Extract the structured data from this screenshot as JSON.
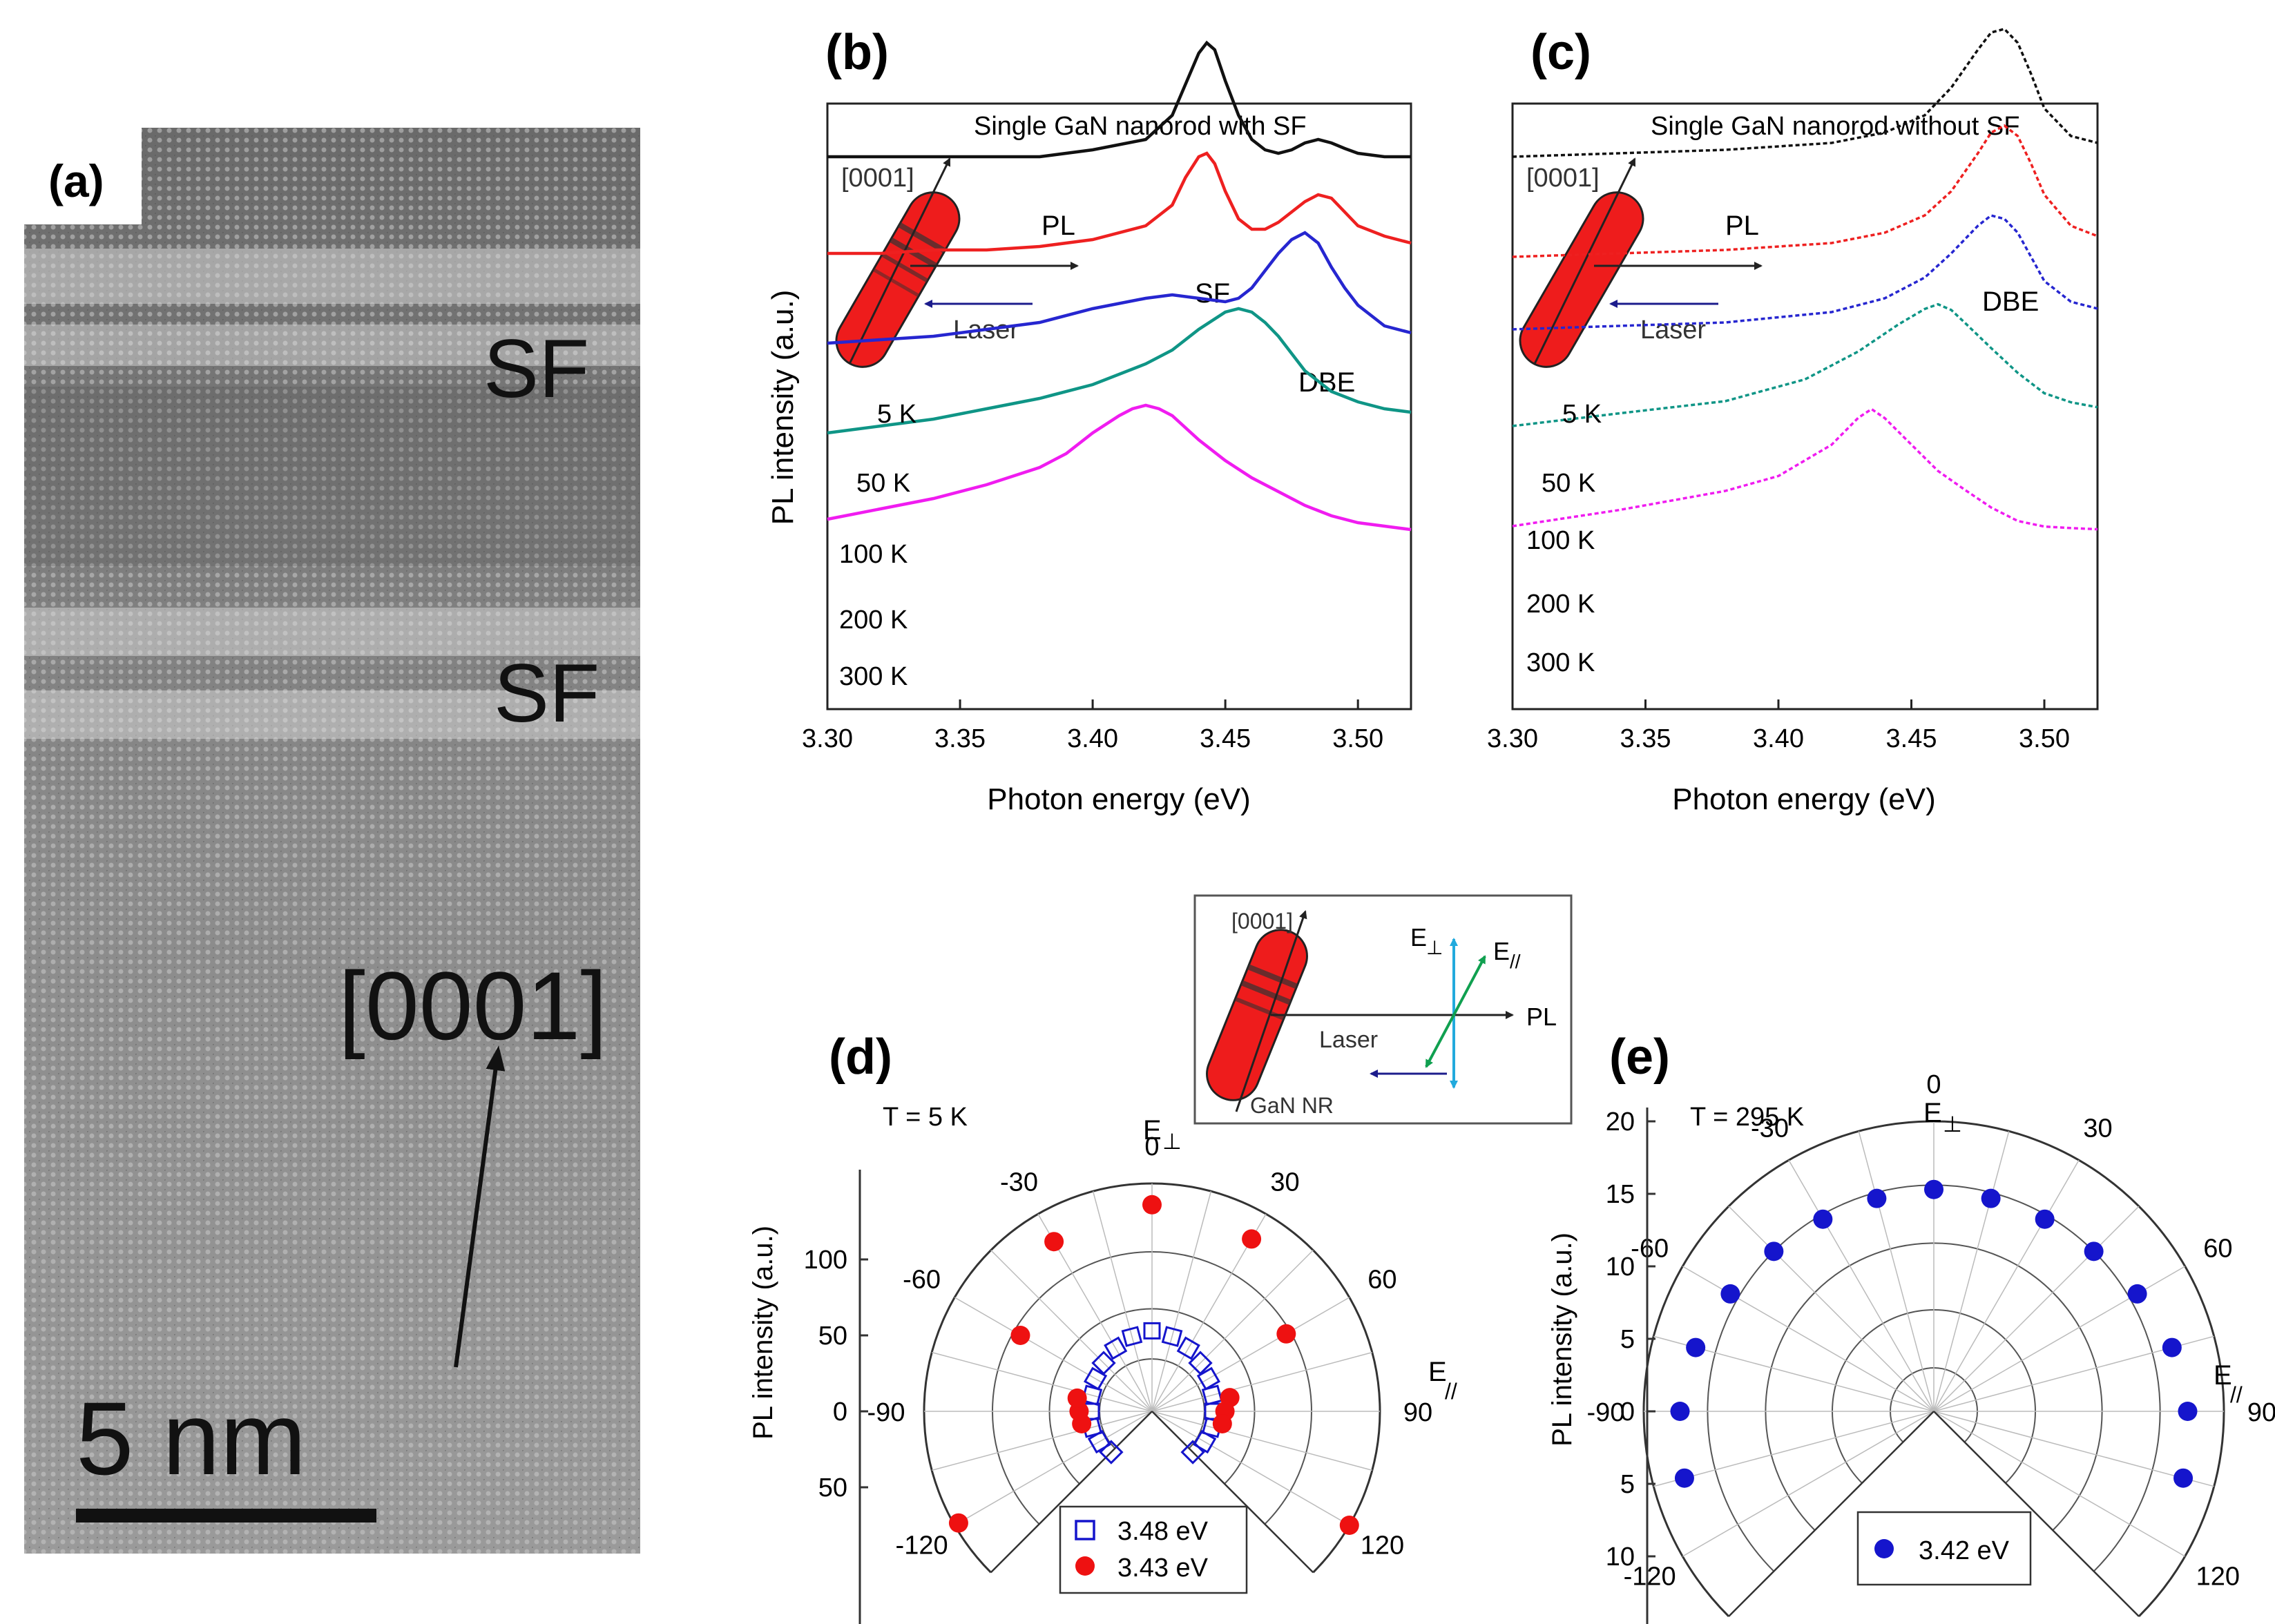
{
  "panels": {
    "a": {
      "label": "(a)",
      "sf_labels": [
        "SF",
        "SF"
      ],
      "direction": "[0001]",
      "scalebar": "5 nm"
    },
    "b": {
      "label": "(b)",
      "title": "Single GaN nanorod with SF",
      "inset": {
        "axis": "[0001]",
        "pl": "PL",
        "laser": "Laser"
      },
      "peak_labels": [
        "SF",
        "DBE"
      ]
    },
    "c": {
      "label": "(c)",
      "title": "Single GaN nanorod without SF",
      "inset": {
        "axis": "[0001]",
        "pl": "PL",
        "laser": "Laser"
      },
      "peak_labels": [
        "DBE"
      ]
    },
    "d": {
      "label": "(d)",
      "temperature": "T = 5 K"
    },
    "e": {
      "label": "(e)",
      "temperature": "T = 295 K"
    },
    "middle_inset": {
      "axis": "[0001]",
      "e_perp": "E",
      "e_perp_sub": "⊥",
      "e_par": "E",
      "e_par_sub": "//",
      "pl": "PL",
      "laser": "Laser",
      "nr": "GaN NR"
    }
  },
  "colors": {
    "k5": "#111111",
    "k50": "#ee2020",
    "k100": "#2626d0",
    "k200": "#0f9586",
    "k300": "#f01cf0",
    "rod": "#ee1c1c",
    "laser": "#1c1c8c",
    "cyan": "#22aadd",
    "green": "#10a050",
    "blue_marker": "#1515cc",
    "red_marker": "#ee1111"
  },
  "chart_data": [
    {
      "panel": "b",
      "type": "line",
      "title": "Single GaN nanorod with SF",
      "xlabel": "Photon energy (eV)",
      "ylabel": "PL intensity (a.u.)",
      "xlim": [
        3.3,
        3.52
      ],
      "xticks": [
        "3.30",
        "3.35",
        "3.40",
        "3.45",
        "3.50"
      ],
      "series": [
        {
          "name": "5 K",
          "label": "5 K",
          "x": [
            3.3,
            3.32,
            3.34,
            3.36,
            3.38,
            3.4,
            3.42,
            3.43,
            3.435,
            3.44,
            3.443,
            3.446,
            3.45,
            3.455,
            3.46,
            3.465,
            3.47,
            3.475,
            3.48,
            3.485,
            3.49,
            3.495,
            3.5,
            3.51,
            3.52
          ],
          "y": [
            0.8,
            0.8,
            0.8,
            0.8,
            0.8,
            0.81,
            0.825,
            0.86,
            0.905,
            0.95,
            0.965,
            0.955,
            0.91,
            0.86,
            0.825,
            0.81,
            0.805,
            0.81,
            0.82,
            0.825,
            0.82,
            0.812,
            0.805,
            0.8,
            0.8
          ]
        },
        {
          "name": "50 K",
          "label": "50 K",
          "x": [
            3.3,
            3.32,
            3.34,
            3.36,
            3.38,
            3.4,
            3.42,
            3.43,
            3.435,
            3.44,
            3.443,
            3.446,
            3.45,
            3.455,
            3.46,
            3.465,
            3.47,
            3.475,
            3.48,
            3.485,
            3.49,
            3.495,
            3.5,
            3.51,
            3.52
          ],
          "y": [
            0.66,
            0.66,
            0.665,
            0.665,
            0.67,
            0.68,
            0.7,
            0.73,
            0.77,
            0.8,
            0.805,
            0.79,
            0.75,
            0.71,
            0.695,
            0.695,
            0.705,
            0.72,
            0.735,
            0.745,
            0.74,
            0.72,
            0.7,
            0.685,
            0.675
          ]
        },
        {
          "name": "100 K",
          "label": "100 K",
          "x": [
            3.3,
            3.32,
            3.34,
            3.36,
            3.38,
            3.4,
            3.42,
            3.43,
            3.44,
            3.45,
            3.455,
            3.46,
            3.465,
            3.47,
            3.475,
            3.48,
            3.485,
            3.49,
            3.495,
            3.5,
            3.51,
            3.52
          ],
          "y": [
            0.53,
            0.535,
            0.54,
            0.55,
            0.56,
            0.58,
            0.595,
            0.6,
            0.595,
            0.59,
            0.595,
            0.61,
            0.635,
            0.66,
            0.68,
            0.69,
            0.675,
            0.64,
            0.61,
            0.585,
            0.555,
            0.545
          ]
        },
        {
          "name": "200 K",
          "label": "200 K",
          "x": [
            3.3,
            3.32,
            3.34,
            3.36,
            3.38,
            3.4,
            3.42,
            3.43,
            3.44,
            3.45,
            3.455,
            3.46,
            3.465,
            3.47,
            3.475,
            3.48,
            3.49,
            3.5,
            3.51,
            3.52
          ],
          "y": [
            0.4,
            0.41,
            0.42,
            0.435,
            0.45,
            0.47,
            0.5,
            0.52,
            0.55,
            0.575,
            0.58,
            0.575,
            0.56,
            0.54,
            0.515,
            0.49,
            0.46,
            0.445,
            0.435,
            0.43
          ]
        },
        {
          "name": "300 K",
          "label": "300 K",
          "x": [
            3.3,
            3.32,
            3.34,
            3.36,
            3.38,
            3.39,
            3.4,
            3.41,
            3.415,
            3.42,
            3.425,
            3.43,
            3.44,
            3.45,
            3.46,
            3.47,
            3.48,
            3.49,
            3.5,
            3.51,
            3.52
          ],
          "y": [
            0.275,
            0.29,
            0.305,
            0.325,
            0.35,
            0.37,
            0.4,
            0.425,
            0.435,
            0.44,
            0.435,
            0.425,
            0.39,
            0.36,
            0.335,
            0.315,
            0.295,
            0.28,
            0.27,
            0.265,
            0.26
          ]
        }
      ]
    },
    {
      "panel": "c",
      "type": "line",
      "title": "Single GaN nanorod without SF",
      "xlabel": "Photon energy (eV)",
      "ylabel": "",
      "xlim": [
        3.3,
        3.52
      ],
      "xticks": [
        "3.30",
        "3.35",
        "3.40",
        "3.45",
        "3.50"
      ],
      "series": [
        {
          "name": "5 K",
          "label": "5 K",
          "x": [
            3.3,
            3.34,
            3.38,
            3.42,
            3.44,
            3.455,
            3.465,
            3.475,
            3.48,
            3.485,
            3.49,
            3.495,
            3.5,
            3.51,
            3.52
          ],
          "y": [
            0.8,
            0.805,
            0.81,
            0.82,
            0.835,
            0.86,
            0.9,
            0.955,
            0.98,
            0.985,
            0.965,
            0.92,
            0.87,
            0.83,
            0.82
          ]
        },
        {
          "name": "50 K",
          "label": "50 K",
          "x": [
            3.3,
            3.34,
            3.38,
            3.42,
            3.44,
            3.455,
            3.465,
            3.475,
            3.48,
            3.485,
            3.49,
            3.495,
            3.5,
            3.51,
            3.52
          ],
          "y": [
            0.655,
            0.66,
            0.665,
            0.675,
            0.69,
            0.715,
            0.75,
            0.805,
            0.835,
            0.845,
            0.83,
            0.79,
            0.745,
            0.7,
            0.685
          ]
        },
        {
          "name": "100 K",
          "label": "100 K",
          "x": [
            3.3,
            3.34,
            3.38,
            3.42,
            3.44,
            3.455,
            3.465,
            3.475,
            3.48,
            3.485,
            3.49,
            3.495,
            3.5,
            3.51,
            3.52
          ],
          "y": [
            0.55,
            0.555,
            0.56,
            0.575,
            0.595,
            0.625,
            0.66,
            0.7,
            0.715,
            0.71,
            0.69,
            0.655,
            0.62,
            0.59,
            0.58
          ]
        },
        {
          "name": "200 K",
          "label": "200 K",
          "x": [
            3.3,
            3.34,
            3.38,
            3.41,
            3.43,
            3.445,
            3.455,
            3.46,
            3.465,
            3.47,
            3.48,
            3.49,
            3.5,
            3.51,
            3.52
          ],
          "y": [
            0.41,
            0.425,
            0.44,
            0.47,
            0.51,
            0.55,
            0.575,
            0.585,
            0.58,
            0.565,
            0.53,
            0.495,
            0.465,
            0.45,
            0.44
          ]
        },
        {
          "name": "300 K",
          "label": "300 K",
          "x": [
            3.3,
            3.34,
            3.38,
            3.4,
            3.42,
            3.43,
            3.435,
            3.44,
            3.45,
            3.46,
            3.47,
            3.48,
            3.49,
            3.5,
            3.51,
            3.52
          ],
          "y": [
            0.265,
            0.285,
            0.31,
            0.33,
            0.375,
            0.415,
            0.43,
            0.42,
            0.385,
            0.35,
            0.325,
            0.3,
            0.28,
            0.27,
            0.265,
            0.26
          ]
        }
      ]
    },
    {
      "panel": "d",
      "type": "scatter",
      "subtype": "polar",
      "ylabel": "PL intensity (a.u.)",
      "radial_ticks_top": [
        "100",
        "50",
        "0"
      ],
      "radial_ticks_bottom": [
        "50"
      ],
      "rmax": 150,
      "angle_ticks": [
        "-120",
        "-90",
        "-60",
        "-30",
        "0",
        "30",
        "60",
        "90",
        "120"
      ],
      "axis_labels": {
        "top": "E",
        "top_sub": "⊥",
        "right": "E",
        "right_sub": "//"
      },
      "legend": [
        "3.48 eV",
        "3.43 eV"
      ],
      "series": [
        {
          "name": "3.48 eV",
          "marker": "open-square",
          "theta": [
            -135,
            -120,
            -105,
            -90,
            -75,
            -60,
            -45,
            -30,
            -15,
            0,
            15,
            30,
            45,
            60,
            75,
            90,
            105,
            120,
            135
          ],
          "r": [
            38,
            40,
            41,
            40,
            41,
            43,
            45,
            48,
            51,
            53,
            51,
            48,
            45,
            43,
            41,
            40,
            41,
            40,
            38
          ]
        },
        {
          "name": "3.43 eV",
          "marker": "filled-circle",
          "theta": [
            -120,
            -100,
            -90,
            -80,
            -60,
            -30,
            0,
            30,
            60,
            80,
            90,
            100,
            120
          ],
          "r": [
            147,
            47,
            48,
            50,
            100,
            129,
            136,
            131,
            102,
            52,
            48,
            47,
            150
          ]
        }
      ]
    },
    {
      "panel": "e",
      "type": "scatter",
      "subtype": "polar",
      "ylabel": "PL intensity (a.u.)",
      "radial_ticks_top": [
        "20",
        "15",
        "10",
        "5",
        "0"
      ],
      "radial_ticks_bottom": [
        "5",
        "10"
      ],
      "rmax": 20,
      "angle_ticks": [
        "-120",
        "-90",
        "-60",
        "-30",
        "0",
        "30",
        "60",
        "90",
        "120"
      ],
      "axis_labels": {
        "top": "E",
        "top_sub": "⊥",
        "right": "E",
        "right_sub": "//"
      },
      "legend": [
        "3.42 eV"
      ],
      "series": [
        {
          "name": "3.42 eV",
          "marker": "filled-circle",
          "theta": [
            -105,
            -90,
            -75,
            -60,
            -45,
            -30,
            -15,
            0,
            15,
            30,
            45,
            60,
            75,
            90,
            105
          ],
          "r": [
            17.8,
            17.5,
            17.0,
            16.2,
            15.6,
            15.3,
            15.2,
            15.3,
            15.2,
            15.3,
            15.6,
            16.2,
            17.0,
            17.5,
            17.8
          ]
        }
      ]
    }
  ]
}
